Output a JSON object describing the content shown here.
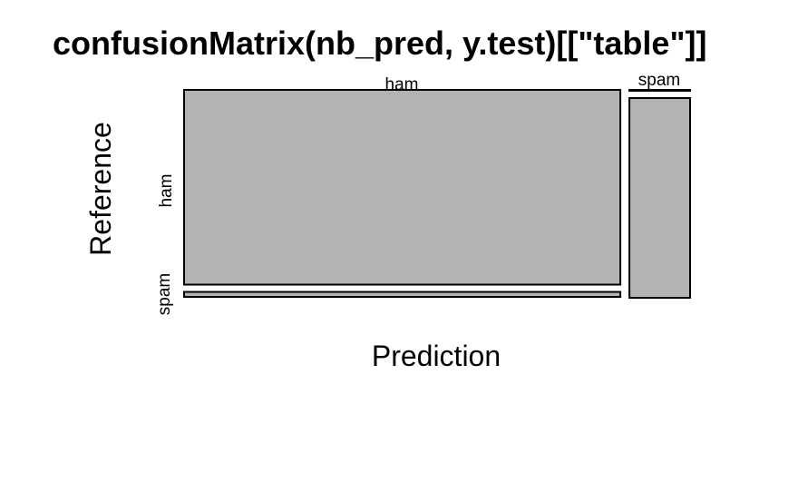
{
  "chart_data": {
    "type": "mosaic",
    "title": "confusionMatrix(nb_pred, y.test)[[\"table\"]]",
    "xlabel": "Prediction",
    "ylabel": "Reference",
    "x_categories": [
      "ham",
      "spam"
    ],
    "y_categories": [
      "ham",
      "spam"
    ],
    "cells": [
      {
        "prediction": "ham",
        "reference": "ham",
        "share_of_prediction": 0.975
      },
      {
        "prediction": "ham",
        "reference": "spam",
        "share_of_prediction": 0.025
      },
      {
        "prediction": "spam",
        "reference": "ham",
        "share_of_prediction": 0.0
      },
      {
        "prediction": "spam",
        "reference": "spam",
        "share_of_prediction": 1.0
      }
    ],
    "prediction_share": {
      "ham": 0.878,
      "spam": 0.122
    },
    "colors": {
      "tile_fill": "#b3b3b3",
      "tile_stroke": "#000000",
      "background": "#ffffff"
    }
  }
}
